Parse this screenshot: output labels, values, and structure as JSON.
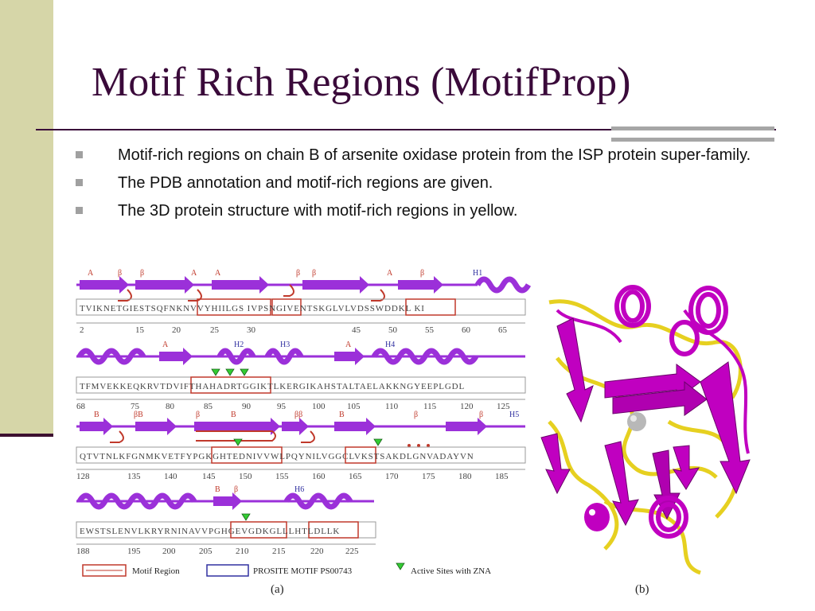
{
  "slide": {
    "title": "Motif Rich Regions (MotifProp)",
    "bullets": [
      "Motif-rich regions on chain B of arsenite oxidase protein from the ISP protein super-family.",
      "The PDB annotation and motif-rich regions are given.",
      "The 3D protein structure with motif-rich regions in yellow."
    ]
  },
  "figure": {
    "rows": [
      {
        "sequence": "TVIKNETGIESTSQFNKNVVYHIILGS  IVPSNGIVENTSKGLVLVDSSWDDKL  KI",
        "ticks": [
          "2",
          "15",
          "20",
          "25",
          "30",
          "45",
          "50",
          "55",
          "60",
          "65"
        ],
        "ss_labels": [
          "A",
          "β",
          "β",
          "A",
          "A",
          "β",
          "β",
          "A",
          "β",
          "H1"
        ]
      },
      {
        "sequence": "TFMVEKKEQKRVTDVIFTHAHADRTGGIKTLKERGIKAHSTALTAELAKKNGYEEPLGDL",
        "ticks": [
          "68",
          "75",
          "80",
          "85",
          "90",
          "95",
          "100",
          "105",
          "110",
          "115",
          "120",
          "125"
        ],
        "ss_labels": [
          "A",
          "H2",
          "H3",
          "A",
          "H4"
        ]
      },
      {
        "sequence": "QTVTNLKFGNMKVETFYPGKGHTEDNIVVWLPQYNILVGGCLVKSTSAKDLGNVADAYVN",
        "ticks": [
          "128",
          "135",
          "140",
          "145",
          "150",
          "155",
          "160",
          "165",
          "170",
          "175",
          "180",
          "185"
        ],
        "ss_labels": [
          "B",
          "βB",
          "β",
          "B",
          "ββ",
          "B",
          "β",
          "β",
          "H5"
        ]
      },
      {
        "sequence": "EWSTSLENVLKRYRNINAVVPGHGEVGDKGLLLHTLDLLK",
        "ticks": [
          "188",
          "195",
          "200",
          "205",
          "210",
          "215",
          "220",
          "225"
        ],
        "ss_labels": [
          "B",
          "β",
          "H6"
        ]
      }
    ],
    "legend": {
      "motif_region": "Motif Region",
      "prosite": "PROSITE MOTIF PS00743",
      "active_sites": "Active Sites with ZNA"
    },
    "panel_a": "(a)",
    "panel_b": "(b)"
  },
  "colors": {
    "title": "#3a0a3a",
    "sidebar": "#d6d6a8",
    "strand": "#9b30d9",
    "motif_box": "#c0392b",
    "prosite_box": "#3030a0",
    "active_site": "#33cc33",
    "structure_helix": "#c000c0",
    "structure_motif": "#e6d020"
  }
}
